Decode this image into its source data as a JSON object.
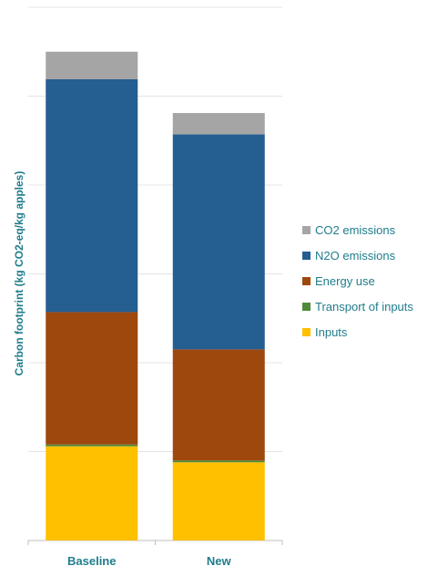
{
  "chart_data": {
    "type": "bar",
    "stacked": true,
    "title": "",
    "xlabel": "",
    "ylabel": "Carbon footprint (kg CO2-eq/kg apples)",
    "categories": [
      "Baseline",
      "New"
    ],
    "ylim": [
      0,
      6
    ],
    "grid": true,
    "legend_position": "right",
    "series": [
      {
        "name": "Inputs",
        "color": "#FFC000",
        "values": [
          1.06,
          0.88
        ]
      },
      {
        "name": "Transport of inputs",
        "color": "#4E8A3A",
        "values": [
          0.02,
          0.02
        ]
      },
      {
        "name": "Energy use",
        "color": "#9E480E",
        "values": [
          1.49,
          1.25
        ]
      },
      {
        "name": "N2O emissions",
        "color": "#255E91",
        "values": [
          2.62,
          2.42
        ]
      },
      {
        "name": "CO2 emissions",
        "color": "#A5A5A5",
        "values": [
          0.31,
          0.24
        ]
      }
    ]
  }
}
